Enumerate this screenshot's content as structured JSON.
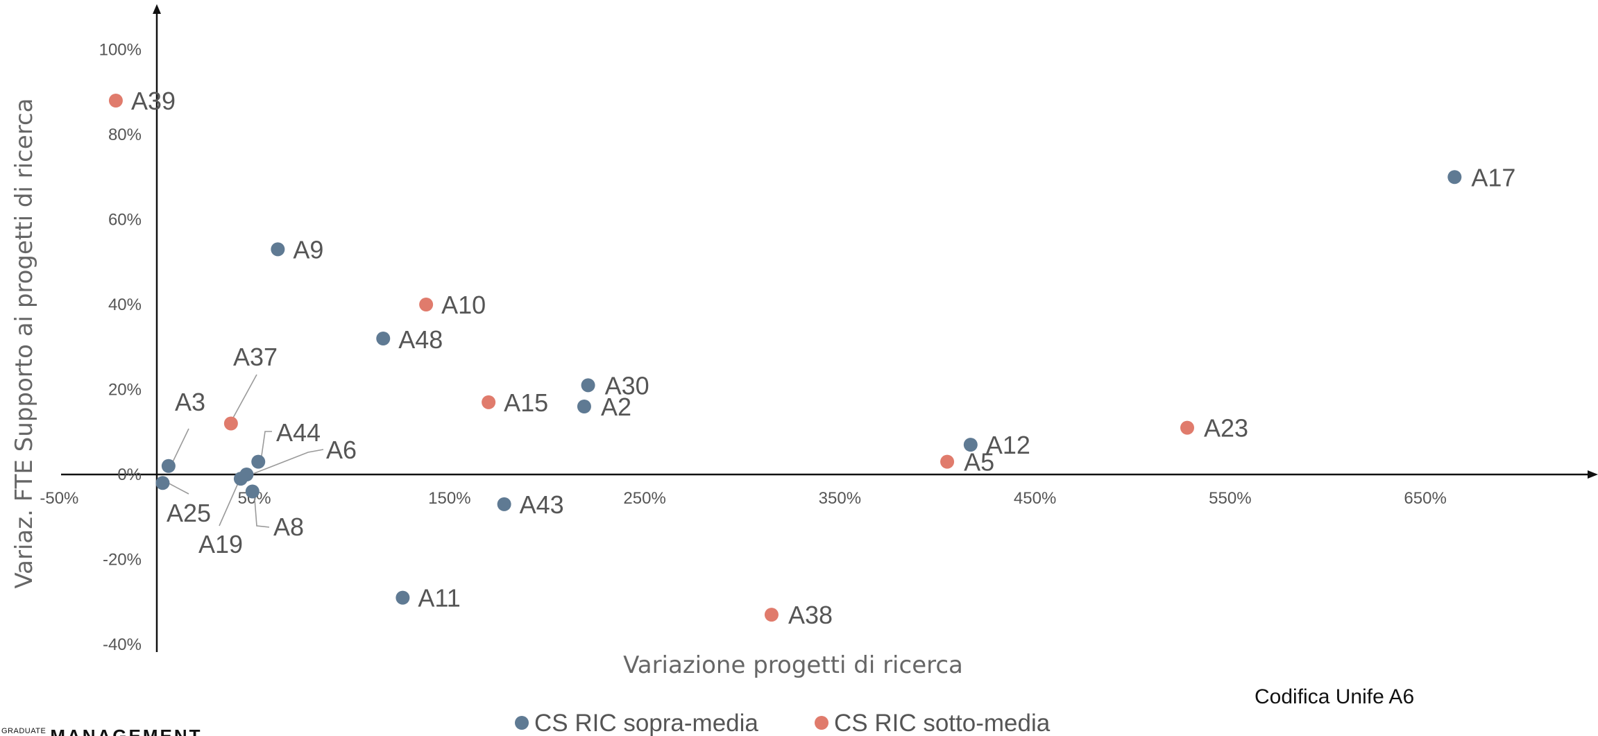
{
  "chart_data": {
    "type": "scatter",
    "xlabel": "Variazione progetti di ricerca",
    "ylabel": "Variaz. FTE Supporto ai progetti di ricerca",
    "xlim": [
      -50,
      750
    ],
    "ylim": [
      -40,
      100
    ],
    "x_ticks": [
      "-50%",
      "50%",
      "150%",
      "250%",
      "350%",
      "450%",
      "550%",
      "650%"
    ],
    "x_tick_values": [
      -50,
      50,
      150,
      250,
      350,
      450,
      550,
      650
    ],
    "y_ticks": [
      "100%",
      "80%",
      "60%",
      "40%",
      "20%",
      "0%",
      "-20%",
      "-40%"
    ],
    "y_tick_values": [
      100,
      80,
      60,
      40,
      20,
      0,
      -20,
      -40
    ],
    "grid": false,
    "legend_position": "bottom-center",
    "series": [
      {
        "name": "CS RIC sopra-media",
        "color": "#5f7a93",
        "points": [
          {
            "label": "A17",
            "x": 665,
            "y": 70
          },
          {
            "label": "A9",
            "x": 62,
            "y": 53
          },
          {
            "label": "A48",
            "x": 116,
            "y": 32
          },
          {
            "label": "A30",
            "x": 221,
            "y": 21
          },
          {
            "label": "A2",
            "x": 219,
            "y": 16
          },
          {
            "label": "A12",
            "x": 417,
            "y": 7
          },
          {
            "label": "A3",
            "x": 6,
            "y": 2
          },
          {
            "label": "A44",
            "x": 52,
            "y": 3
          },
          {
            "label": "A6",
            "x": 46,
            "y": 0
          },
          {
            "label": "A19",
            "x": 43,
            "y": -1
          },
          {
            "label": "A25",
            "x": 3,
            "y": -2
          },
          {
            "label": "A8",
            "x": 49,
            "y": -4
          },
          {
            "label": "A43",
            "x": 178,
            "y": -7
          },
          {
            "label": "A11",
            "x": 126,
            "y": -29
          }
        ]
      },
      {
        "name": "CS RIC sotto-media",
        "color": "#e07b6c",
        "points": [
          {
            "label": "A39",
            "x": -21,
            "y": 88
          },
          {
            "label": "A10",
            "x": 138,
            "y": 40
          },
          {
            "label": "A15",
            "x": 170,
            "y": 17
          },
          {
            "label": "A37",
            "x": 38,
            "y": 12
          },
          {
            "label": "A23",
            "x": 528,
            "y": 11
          },
          {
            "label": "A5",
            "x": 405,
            "y": 3
          },
          {
            "label": "A38",
            "x": 315,
            "y": -33
          }
        ]
      }
    ]
  },
  "note": "Codifica Unife A6",
  "logo": {
    "small_text": "GRADUATE",
    "big_text": "MANAGEMENT"
  }
}
